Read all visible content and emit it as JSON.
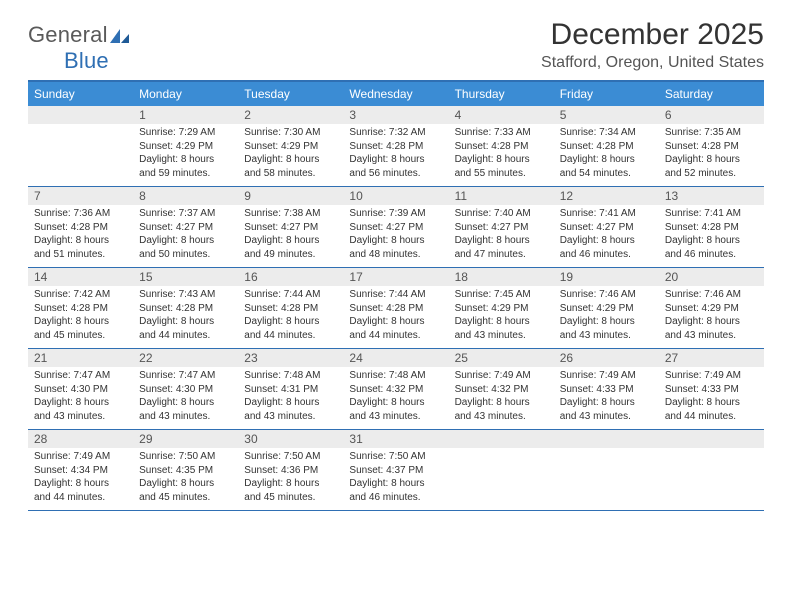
{
  "brand": {
    "part1": "General",
    "part2": "Blue"
  },
  "title": "December 2025",
  "location": "Stafford, Oregon, United States",
  "colors": {
    "header_bg": "#3b8cd4",
    "border": "#2f6fb3",
    "daynum_bg": "#ececec",
    "text": "#333333",
    "logo_gray": "#5a5a5a",
    "logo_blue": "#2f6fb3"
  },
  "dayNames": [
    "Sunday",
    "Monday",
    "Tuesday",
    "Wednesday",
    "Thursday",
    "Friday",
    "Saturday"
  ],
  "weeks": [
    [
      {
        "num": "",
        "sunrise": "",
        "sunset": "",
        "daylight": ""
      },
      {
        "num": "1",
        "sunrise": "Sunrise: 7:29 AM",
        "sunset": "Sunset: 4:29 PM",
        "daylight": "Daylight: 8 hours and 59 minutes."
      },
      {
        "num": "2",
        "sunrise": "Sunrise: 7:30 AM",
        "sunset": "Sunset: 4:29 PM",
        "daylight": "Daylight: 8 hours and 58 minutes."
      },
      {
        "num": "3",
        "sunrise": "Sunrise: 7:32 AM",
        "sunset": "Sunset: 4:28 PM",
        "daylight": "Daylight: 8 hours and 56 minutes."
      },
      {
        "num": "4",
        "sunrise": "Sunrise: 7:33 AM",
        "sunset": "Sunset: 4:28 PM",
        "daylight": "Daylight: 8 hours and 55 minutes."
      },
      {
        "num": "5",
        "sunrise": "Sunrise: 7:34 AM",
        "sunset": "Sunset: 4:28 PM",
        "daylight": "Daylight: 8 hours and 54 minutes."
      },
      {
        "num": "6",
        "sunrise": "Sunrise: 7:35 AM",
        "sunset": "Sunset: 4:28 PM",
        "daylight": "Daylight: 8 hours and 52 minutes."
      }
    ],
    [
      {
        "num": "7",
        "sunrise": "Sunrise: 7:36 AM",
        "sunset": "Sunset: 4:28 PM",
        "daylight": "Daylight: 8 hours and 51 minutes."
      },
      {
        "num": "8",
        "sunrise": "Sunrise: 7:37 AM",
        "sunset": "Sunset: 4:27 PM",
        "daylight": "Daylight: 8 hours and 50 minutes."
      },
      {
        "num": "9",
        "sunrise": "Sunrise: 7:38 AM",
        "sunset": "Sunset: 4:27 PM",
        "daylight": "Daylight: 8 hours and 49 minutes."
      },
      {
        "num": "10",
        "sunrise": "Sunrise: 7:39 AM",
        "sunset": "Sunset: 4:27 PM",
        "daylight": "Daylight: 8 hours and 48 minutes."
      },
      {
        "num": "11",
        "sunrise": "Sunrise: 7:40 AM",
        "sunset": "Sunset: 4:27 PM",
        "daylight": "Daylight: 8 hours and 47 minutes."
      },
      {
        "num": "12",
        "sunrise": "Sunrise: 7:41 AM",
        "sunset": "Sunset: 4:27 PM",
        "daylight": "Daylight: 8 hours and 46 minutes."
      },
      {
        "num": "13",
        "sunrise": "Sunrise: 7:41 AM",
        "sunset": "Sunset: 4:28 PM",
        "daylight": "Daylight: 8 hours and 46 minutes."
      }
    ],
    [
      {
        "num": "14",
        "sunrise": "Sunrise: 7:42 AM",
        "sunset": "Sunset: 4:28 PM",
        "daylight": "Daylight: 8 hours and 45 minutes."
      },
      {
        "num": "15",
        "sunrise": "Sunrise: 7:43 AM",
        "sunset": "Sunset: 4:28 PM",
        "daylight": "Daylight: 8 hours and 44 minutes."
      },
      {
        "num": "16",
        "sunrise": "Sunrise: 7:44 AM",
        "sunset": "Sunset: 4:28 PM",
        "daylight": "Daylight: 8 hours and 44 minutes."
      },
      {
        "num": "17",
        "sunrise": "Sunrise: 7:44 AM",
        "sunset": "Sunset: 4:28 PM",
        "daylight": "Daylight: 8 hours and 44 minutes."
      },
      {
        "num": "18",
        "sunrise": "Sunrise: 7:45 AM",
        "sunset": "Sunset: 4:29 PM",
        "daylight": "Daylight: 8 hours and 43 minutes."
      },
      {
        "num": "19",
        "sunrise": "Sunrise: 7:46 AM",
        "sunset": "Sunset: 4:29 PM",
        "daylight": "Daylight: 8 hours and 43 minutes."
      },
      {
        "num": "20",
        "sunrise": "Sunrise: 7:46 AM",
        "sunset": "Sunset: 4:29 PM",
        "daylight": "Daylight: 8 hours and 43 minutes."
      }
    ],
    [
      {
        "num": "21",
        "sunrise": "Sunrise: 7:47 AM",
        "sunset": "Sunset: 4:30 PM",
        "daylight": "Daylight: 8 hours and 43 minutes."
      },
      {
        "num": "22",
        "sunrise": "Sunrise: 7:47 AM",
        "sunset": "Sunset: 4:30 PM",
        "daylight": "Daylight: 8 hours and 43 minutes."
      },
      {
        "num": "23",
        "sunrise": "Sunrise: 7:48 AM",
        "sunset": "Sunset: 4:31 PM",
        "daylight": "Daylight: 8 hours and 43 minutes."
      },
      {
        "num": "24",
        "sunrise": "Sunrise: 7:48 AM",
        "sunset": "Sunset: 4:32 PM",
        "daylight": "Daylight: 8 hours and 43 minutes."
      },
      {
        "num": "25",
        "sunrise": "Sunrise: 7:49 AM",
        "sunset": "Sunset: 4:32 PM",
        "daylight": "Daylight: 8 hours and 43 minutes."
      },
      {
        "num": "26",
        "sunrise": "Sunrise: 7:49 AM",
        "sunset": "Sunset: 4:33 PM",
        "daylight": "Daylight: 8 hours and 43 minutes."
      },
      {
        "num": "27",
        "sunrise": "Sunrise: 7:49 AM",
        "sunset": "Sunset: 4:33 PM",
        "daylight": "Daylight: 8 hours and 44 minutes."
      }
    ],
    [
      {
        "num": "28",
        "sunrise": "Sunrise: 7:49 AM",
        "sunset": "Sunset: 4:34 PM",
        "daylight": "Daylight: 8 hours and 44 minutes."
      },
      {
        "num": "29",
        "sunrise": "Sunrise: 7:50 AM",
        "sunset": "Sunset: 4:35 PM",
        "daylight": "Daylight: 8 hours and 45 minutes."
      },
      {
        "num": "30",
        "sunrise": "Sunrise: 7:50 AM",
        "sunset": "Sunset: 4:36 PM",
        "daylight": "Daylight: 8 hours and 45 minutes."
      },
      {
        "num": "31",
        "sunrise": "Sunrise: 7:50 AM",
        "sunset": "Sunset: 4:37 PM",
        "daylight": "Daylight: 8 hours and 46 minutes."
      },
      {
        "num": "",
        "sunrise": "",
        "sunset": "",
        "daylight": ""
      },
      {
        "num": "",
        "sunrise": "",
        "sunset": "",
        "daylight": ""
      },
      {
        "num": "",
        "sunrise": "",
        "sunset": "",
        "daylight": ""
      }
    ]
  ]
}
